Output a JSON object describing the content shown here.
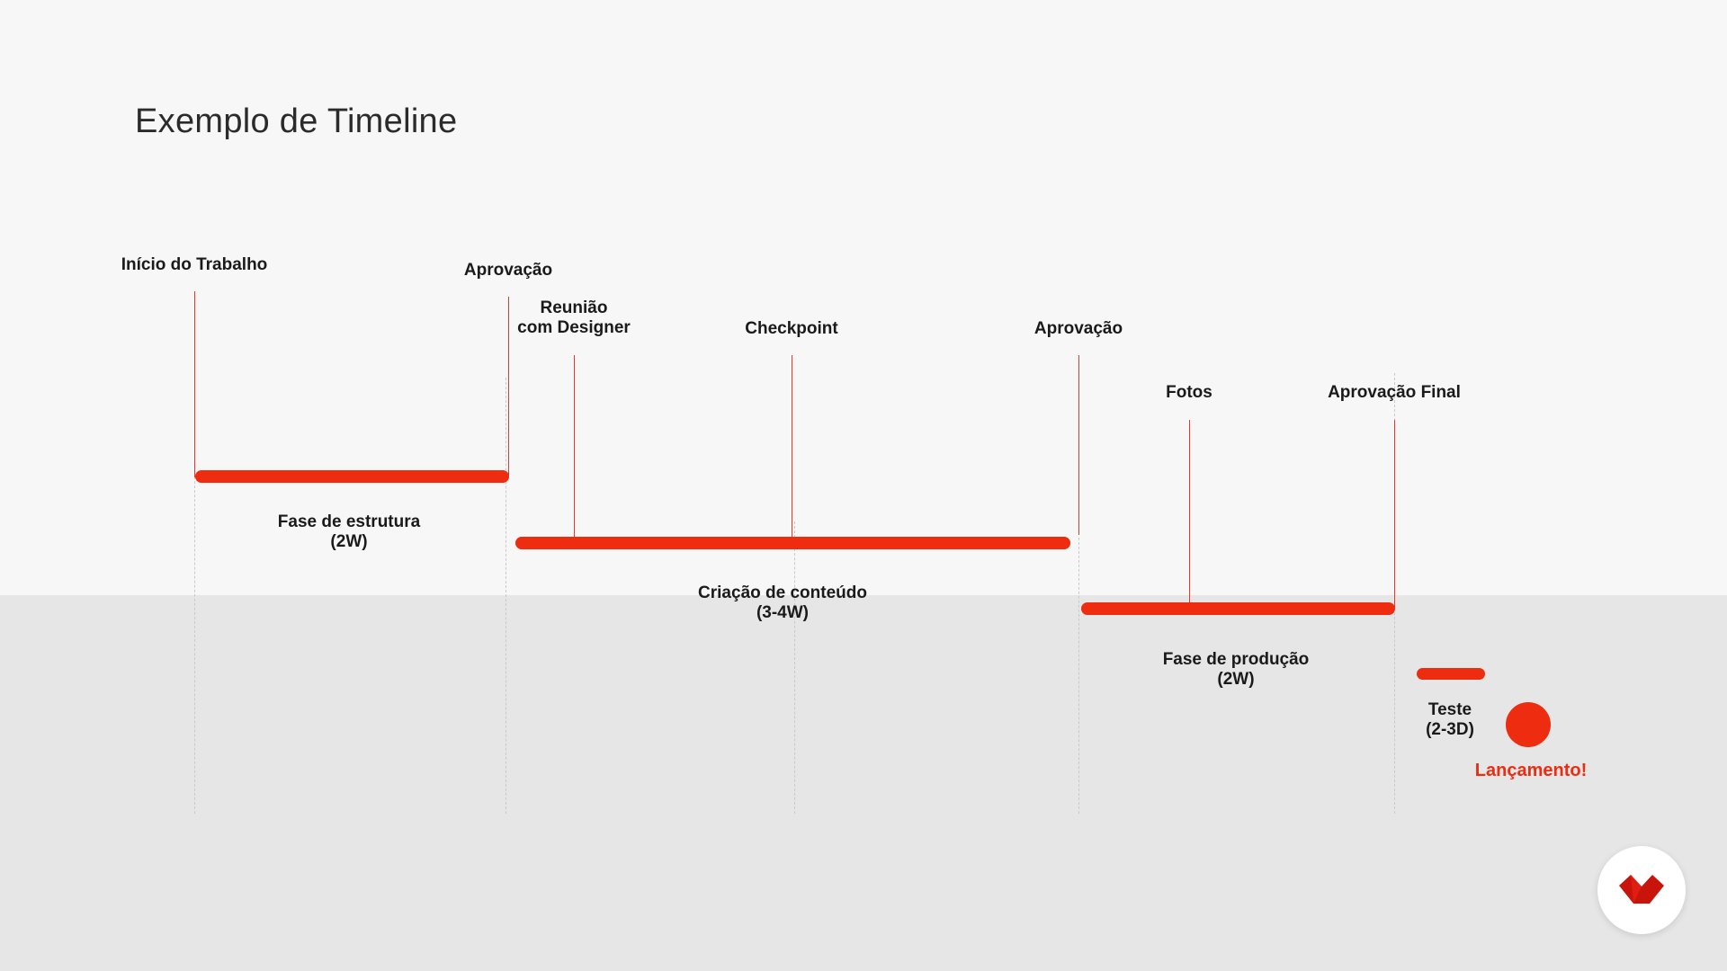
{
  "title": "Exemplo de Timeline",
  "colors": {
    "accent": "#ee2c10",
    "background_top": "#f7f7f7",
    "background_bottom": "#e6e6e6",
    "text": "#1a1a1a"
  },
  "milestones": [
    {
      "label": [
        "Início do Trabalho"
      ]
    },
    {
      "label": [
        "Aprovação"
      ]
    },
    {
      "label": [
        "Reunião",
        "com Designer"
      ]
    },
    {
      "label": [
        "Checkpoint"
      ]
    },
    {
      "label": [
        "Aprovação"
      ]
    },
    {
      "label": [
        "Fotos"
      ]
    },
    {
      "label": [
        "Aprovação Final"
      ]
    }
  ],
  "phases": [
    {
      "name": "Fase de estrutura",
      "duration": "(2W)"
    },
    {
      "name": "Criação de conteúdo",
      "duration": "(3-4W)"
    },
    {
      "name": "Fase de produção",
      "duration": "(2W)"
    },
    {
      "name": "Teste",
      "duration": "(2-3D)"
    }
  ],
  "launch": {
    "label": "Lançamento!"
  },
  "logo": {
    "icon": "brand-logo-icon"
  }
}
